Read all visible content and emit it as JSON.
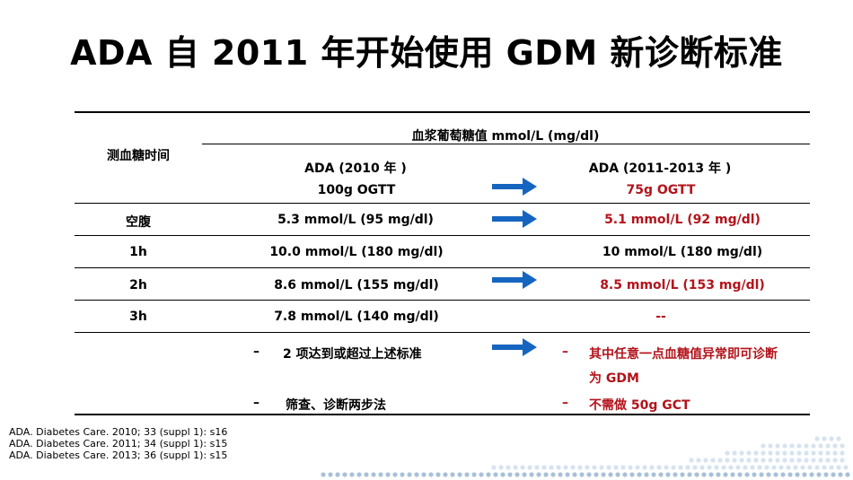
{
  "title": "ADA 自 2011 年开始使用 GDM 新诊断标准",
  "table": {
    "row_header_label": "测血糖时间",
    "group_header": "血浆葡萄糖值  mmol/L (mg/dl)",
    "old_col": {
      "line1": "ADA (2010 年 )",
      "line2": "100g OGTT"
    },
    "new_col": {
      "line1": "ADA (2011-2013 年 )",
      "line2": "75g OGTT"
    },
    "rows": [
      {
        "label": "空腹",
        "old": "5.3 mmol/L (95 mg/dl)",
        "new": "5.1 mmol/L (92 mg/dl)"
      },
      {
        "label": "1h",
        "old": "10.0 mmol/L (180 mg/dl)",
        "new": "10 mmol/L (180 mg/dl)"
      },
      {
        "label": "2h",
        "old": "8.6 mmol/L (155 mg/dl)",
        "new": "8.5 mmol/L (153 mg/dl)"
      },
      {
        "label": "3h",
        "old": "7.8 mmol/L (140 mg/dl)",
        "new": "--"
      }
    ],
    "notes_old": [
      {
        "bullet": "–",
        "text": "2 项达到或超过上述标准"
      },
      {
        "bullet": "–",
        "text": "筛查、诊断两步法"
      }
    ],
    "notes_new": [
      {
        "bullet": "–",
        "text": "其中任意一点血糖值异常即可诊断"
      },
      {
        "text": "为 GDM"
      },
      {
        "bullet": "–",
        "text": "不需做 50g GCT"
      }
    ]
  },
  "references": [
    "ADA. Diabetes Care. 2010; 33 (suppl 1): s16",
    "ADA. Diabetes Care. 2011; 34 (suppl 1): s15",
    "ADA. Diabetes Care. 2013; 36 (suppl 1): s15"
  ],
  "colors": {
    "highlight_red": "#b3131b",
    "arrow_blue": "#1565c0",
    "dot_light": "#d7e3ef",
    "dot_mid": "#a9c0d8"
  }
}
